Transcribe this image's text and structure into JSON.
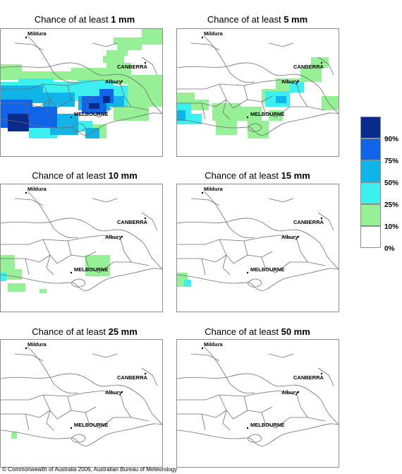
{
  "panels": [
    {
      "title_prefix": "Chance of at least ",
      "amount": "1 mm"
    },
    {
      "title_prefix": "Chance of at least ",
      "amount": "5 mm"
    },
    {
      "title_prefix": "Chance of at least ",
      "amount": "10 mm"
    },
    {
      "title_prefix": "Chance of at least ",
      "amount": "15 mm"
    },
    {
      "title_prefix": "Chance of at least ",
      "amount": "25 mm"
    },
    {
      "title_prefix": "Chance of at least ",
      "amount": "50 mm"
    }
  ],
  "cities": {
    "mildura": "Mildura",
    "canberra": "CANBERRA",
    "albury": "Albury",
    "melbourne": "MELBOURNE"
  },
  "legend": {
    "ticks": [
      "90%",
      "75%",
      "50%",
      "25%",
      "10%",
      "0%"
    ],
    "colors": [
      "#0a2a8c",
      "#1064e8",
      "#10b4e8",
      "#3cf0f0",
      "#96f096",
      "#ffffff"
    ]
  },
  "copyright": "© Commonwealth of Australia 2006, Australian Bureau of Meteorology"
}
